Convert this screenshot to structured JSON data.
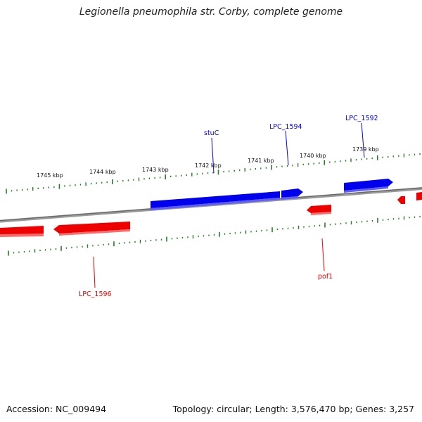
{
  "header": {
    "title": "Legionella pneumophila str. Corby, complete genome"
  },
  "footer": {
    "accession": "Accession: NC_009494",
    "summary": "Topology: circular; Length: 3,576,470 bp; Genes: 3,257"
  },
  "scale": {
    "unit": "kbp",
    "labels": [
      "1745 kbp",
      "1744 kbp",
      "1743 kbp",
      "1742 kbp",
      "1741 kbp",
      "1740 kbp",
      "1739 kbp"
    ]
  },
  "genes": {
    "forward": [
      {
        "name": "stuC"
      },
      {
        "name": "LPC_1594"
      },
      {
        "name": "LPC_1592"
      }
    ],
    "reverse": [
      {
        "name": "LPC_1596"
      },
      {
        "name": "pof1"
      }
    ]
  },
  "colors": {
    "forward_strand": "#0000ee",
    "reverse_strand": "#ee0000",
    "ticks": "#2a7a2a",
    "backbone": "#888888"
  }
}
